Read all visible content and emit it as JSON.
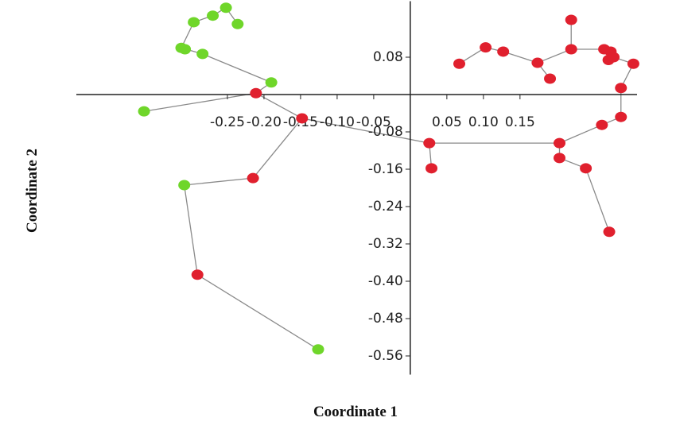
{
  "chart_data": {
    "type": "scatter",
    "x_label": "Coordinate 1",
    "y_label": "Coordinate 2",
    "xlim": [
      -0.45,
      0.31
    ],
    "ylim": [
      -0.6,
      0.2
    ],
    "xticks": [
      -0.25,
      {
        "value": -0.2,
        "label": "-0.20"
      },
      -0.15,
      {
        "value": -0.1,
        "label": "-0.10"
      },
      -0.05,
      0.05,
      {
        "value": 0.1,
        "label": "0.10"
      },
      0.15
    ],
    "yticks": [
      0.08,
      -0.08,
      -0.16,
      -0.24,
      -0.32,
      {
        "value": -0.4,
        "label": "-0.40"
      },
      -0.48,
      -0.56
    ],
    "series": [
      {
        "color": "#e0202e",
        "x": [
          0.067,
          0.103,
          0.127,
          0.174,
          0.191,
          0.22,
          0.22,
          0.265,
          0.274,
          0.271,
          0.278,
          0.305,
          0.288,
          0.288,
          0.262,
          0.204,
          0.204,
          0.24,
          0.272,
          0.026,
          0.029,
          -0.148,
          -0.211,
          -0.215,
          -0.291
        ],
        "values": [
          0.066,
          0.101,
          0.092,
          0.068,
          0.034,
          0.097,
          0.16,
          0.097,
          0.092,
          0.074,
          0.08,
          0.066,
          0.014,
          -0.048,
          -0.065,
          -0.104,
          -0.136,
          -0.158,
          -0.294,
          -0.104,
          -0.158,
          -0.051,
          0.003,
          -0.179,
          -0.386
        ]
      },
      {
        "color": "#6fd62a",
        "x": [
          -0.252,
          -0.27,
          -0.296,
          -0.236,
          -0.313,
          -0.308,
          -0.284,
          -0.19,
          -0.364,
          -0.309,
          -0.126
        ],
        "values": [
          0.186,
          0.169,
          0.155,
          0.151,
          0.1,
          0.097,
          0.087,
          0.026,
          -0.036,
          -0.194,
          -0.546
        ]
      }
    ],
    "edges": [
      [
        [
          0,
          0
        ],
        [
          0,
          1
        ]
      ],
      [
        [
          0,
          1
        ],
        [
          0,
          2
        ]
      ],
      [
        [
          0,
          2
        ],
        [
          0,
          3
        ]
      ],
      [
        [
          0,
          3
        ],
        [
          0,
          4
        ]
      ],
      [
        [
          0,
          3
        ],
        [
          0,
          5
        ]
      ],
      [
        [
          0,
          5
        ],
        [
          0,
          6
        ]
      ],
      [
        [
          0,
          5
        ],
        [
          0,
          7
        ]
      ],
      [
        [
          0,
          7
        ],
        [
          0,
          8
        ]
      ],
      [
        [
          0,
          8
        ],
        [
          0,
          10
        ]
      ],
      [
        [
          0,
          9
        ],
        [
          0,
          10
        ]
      ],
      [
        [
          0,
          10
        ],
        [
          0,
          11
        ]
      ],
      [
        [
          0,
          11
        ],
        [
          0,
          12
        ]
      ],
      [
        [
          0,
          12
        ],
        [
          0,
          13
        ]
      ],
      [
        [
          0,
          13
        ],
        [
          0,
          14
        ]
      ],
      [
        [
          0,
          14
        ],
        [
          0,
          15
        ]
      ],
      [
        [
          0,
          15
        ],
        [
          0,
          16
        ]
      ],
      [
        [
          0,
          16
        ],
        [
          0,
          17
        ]
      ],
      [
        [
          0,
          17
        ],
        [
          0,
          18
        ]
      ],
      [
        [
          0,
          15
        ],
        [
          0,
          19
        ]
      ],
      [
        [
          0,
          19
        ],
        [
          0,
          20
        ]
      ],
      [
        [
          0,
          19
        ],
        [
          0,
          21
        ]
      ],
      [
        [
          0,
          21
        ],
        [
          0,
          22
        ]
      ],
      [
        [
          0,
          21
        ],
        [
          0,
          23
        ]
      ],
      [
        [
          0,
          23
        ],
        [
          1,
          9
        ]
      ],
      [
        [
          1,
          9
        ],
        [
          0,
          24
        ]
      ],
      [
        [
          0,
          24
        ],
        [
          1,
          10
        ]
      ],
      [
        [
          0,
          22
        ],
        [
          1,
          7
        ]
      ],
      [
        [
          0,
          22
        ],
        [
          1,
          8
        ]
      ],
      [
        [
          1,
          7
        ],
        [
          1,
          6
        ]
      ],
      [
        [
          1,
          6
        ],
        [
          1,
          4
        ]
      ],
      [
        [
          1,
          4
        ],
        [
          1,
          5
        ]
      ],
      [
        [
          1,
          4
        ],
        [
          1,
          2
        ]
      ],
      [
        [
          1,
          2
        ],
        [
          1,
          1
        ]
      ],
      [
        [
          1,
          1
        ],
        [
          1,
          0
        ]
      ],
      [
        [
          1,
          0
        ],
        [
          1,
          3
        ]
      ]
    ]
  }
}
